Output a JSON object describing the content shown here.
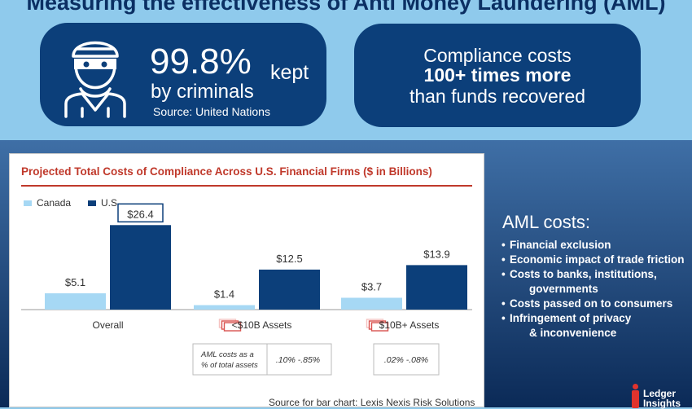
{
  "headline": "Measuring the effectiveness of Anti Money Laundering (AML)",
  "stat_left": {
    "value": "99.8%",
    "value_suffix": "kept",
    "subtitle": "by criminals",
    "source": "Source: United Nations",
    "icon": "masked-criminal-icon"
  },
  "stat_right": {
    "line1": "Compliance costs",
    "line2": "100+ times more",
    "line3": "than funds recovered"
  },
  "chart_data": {
    "type": "bar",
    "title": "Projected Total Costs of Compliance Across U.S. Financial Firms ($ in Billions)",
    "categories": [
      "Overall",
      "<$10B Assets",
      "$10B+ Assets"
    ],
    "series": [
      {
        "name": "Canada",
        "values": [
          5.1,
          1.4,
          3.7
        ],
        "labels": [
          "$5.1",
          "$1.4",
          "$3.7"
        ],
        "color": "#a6d8f4"
      },
      {
        "name": "U.S.",
        "values": [
          26.4,
          12.5,
          13.9
        ],
        "labels": [
          "$26.4",
          "$12.5",
          "$13.9"
        ],
        "color": "#0c3f7a"
      }
    ],
    "highlighted_label": "$26.4",
    "ylim": [
      0,
      28
    ],
    "grid": false,
    "legend": "top-left",
    "table": {
      "row_label": "AML costs as a % of total assets",
      "values": [
        "",
        ".10% -.85%",
        ".02% -.08%"
      ]
    }
  },
  "sidebar": {
    "title": "AML costs:",
    "items": [
      {
        "line": "Financial exclusion"
      },
      {
        "line": "Economic impact of trade friction"
      },
      {
        "line": "Costs to banks, institutions,",
        "cont": "governments"
      },
      {
        "line": "Costs passed on to consumers"
      },
      {
        "line": "Infringement of privacy",
        "cont": "& inconvenience"
      }
    ]
  },
  "source_note": "Source for bar chart: Lexis Nexis Risk Solutions",
  "logo": {
    "line1": "Ledger",
    "line2": "Insights"
  },
  "colors": {
    "navy": "#0c3f7a",
    "light_blue": "#a6d8f4",
    "title_red": "#c0392b",
    "money_icon": "#d9534f"
  }
}
